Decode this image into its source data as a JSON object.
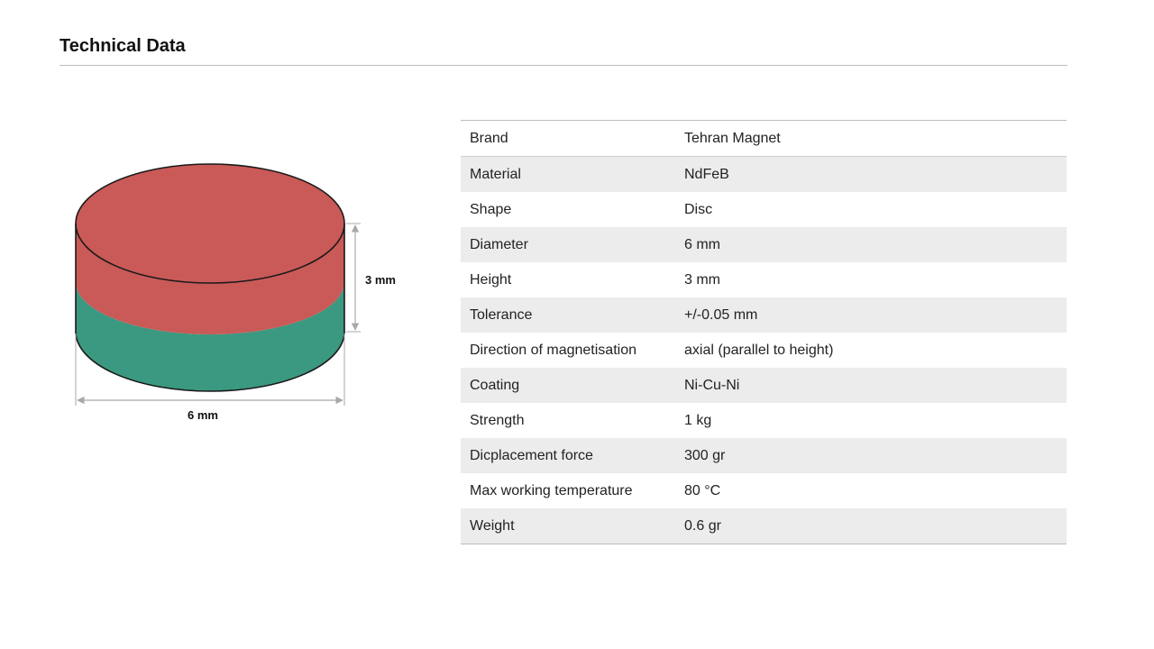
{
  "page": {
    "title": "Technical Data"
  },
  "figure": {
    "width_label": "6 mm",
    "height_label": "3 mm",
    "colors": {
      "north_pole": "#c95a58",
      "south_pole": "#3a9980",
      "outline": "#1a1a1a",
      "dimension_line": "#a8a8a8"
    }
  },
  "specs": [
    {
      "label": "Brand",
      "value": "Tehran Magnet"
    },
    {
      "label": "Material",
      "value": "NdFeB"
    },
    {
      "label": "Shape",
      "value": "Disc"
    },
    {
      "label": "Diameter",
      "value": "6 mm"
    },
    {
      "label": "Height",
      "value": "3 mm"
    },
    {
      "label": "Tolerance",
      "value": "+/-0.05 mm"
    },
    {
      "label": "Direction of magnetisation",
      "value": "axial (parallel to height)"
    },
    {
      "label": "Coating",
      "value": "Ni-Cu-Ni"
    },
    {
      "label": "Strength",
      "value": "1 kg"
    },
    {
      "label": "Dicplacement force",
      "value": "300 gr"
    },
    {
      "label": "Max working temperature",
      "value": "80 °C"
    },
    {
      "label": "Weight",
      "value": "0.6 gr"
    }
  ]
}
